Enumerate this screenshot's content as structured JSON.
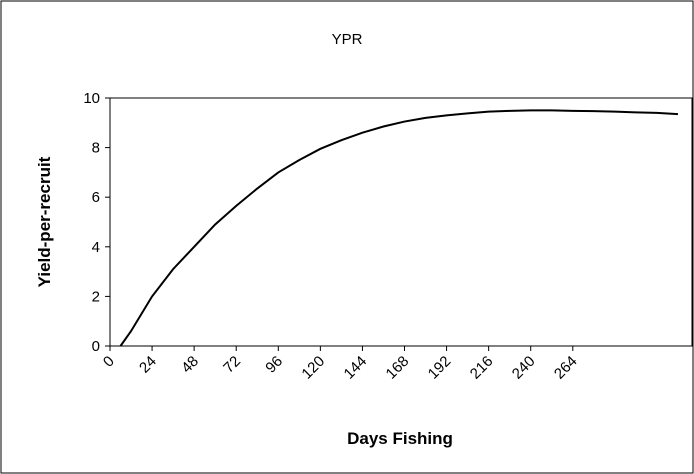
{
  "chart_data": {
    "type": "line",
    "title": "YPR",
    "x_label": "Days Fishing",
    "y_label": "Yield-per-recruit",
    "x": [
      6,
      12,
      24,
      36,
      48,
      60,
      72,
      84,
      96,
      108,
      120,
      132,
      144,
      156,
      168,
      180,
      192,
      204,
      216,
      228,
      240,
      252,
      264,
      276,
      288,
      300,
      312,
      324
    ],
    "series": [
      {
        "name": "YPR",
        "color": "#000000",
        "values": [
          0,
          0.6,
          2.0,
          3.1,
          4.0,
          4.9,
          5.65,
          6.35,
          7.0,
          7.5,
          7.95,
          8.3,
          8.6,
          8.85,
          9.05,
          9.2,
          9.3,
          9.38,
          9.45,
          9.48,
          9.5,
          9.5,
          9.48,
          9.47,
          9.45,
          9.42,
          9.4,
          9.35
        ]
      }
    ],
    "xlim": [
      0,
      332
    ],
    "xticks": [
      0,
      24,
      48,
      72,
      96,
      120,
      144,
      168,
      192,
      216,
      240,
      264
    ],
    "ylim": [
      0,
      10
    ],
    "yticks": [
      0,
      2,
      4,
      6,
      8,
      10
    ],
    "grid": false
  }
}
